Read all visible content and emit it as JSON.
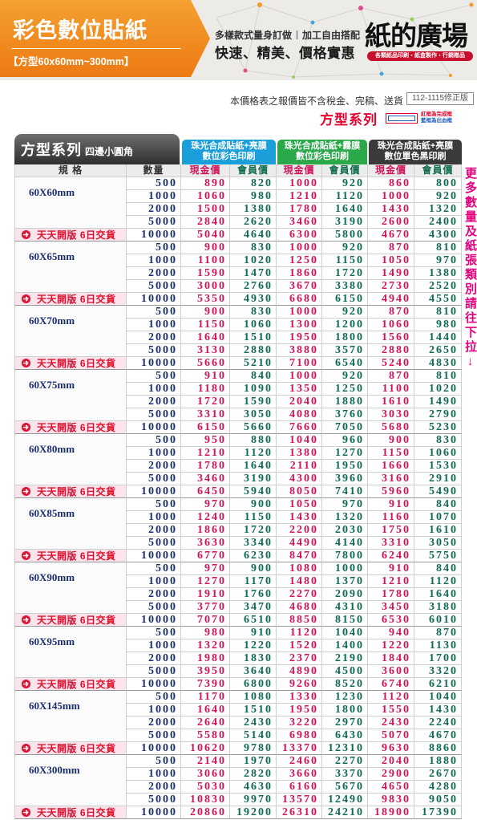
{
  "header": {
    "title": "彩色數位貼紙",
    "subtitle": "【方型60x60mm~300mm】",
    "tagline_left": "多樣款式量身訂做",
    "tagline_right": "加工自由搭配",
    "slogan": "快速、精美、價格實惠",
    "brand": "紙的廣場",
    "brand_sub": "各類紙品印刷・紙盒製作・行銷贈品"
  },
  "notice": {
    "text": "本價格表之報價皆不含稅金、完稿、送貨",
    "version": "112-1115修正版"
  },
  "series": {
    "title": "方型系列",
    "legend_red": "紅框為完成框",
    "legend_blue": "藍框為出血框"
  },
  "table": {
    "label": "方型系列",
    "label_sub": "四邊小圓角",
    "groups": [
      {
        "line1": "珠光合成貼紙+亮膜",
        "line2": "數位彩色印刷",
        "color": "#1a9fdb"
      },
      {
        "line1": "珠光合成貼紙+霧膜",
        "line2": "數位彩色印刷",
        "color": "#2aa84a"
      },
      {
        "line1": "珠光合成貼紙+亮膜",
        "line2": "數位單色黑印刷",
        "color": "#3a3a3a"
      }
    ],
    "col_spec": "規 格",
    "col_qty": "數量",
    "col_cash": "現金價",
    "col_member": "會員價",
    "quick_note": "天天開版 6日交貨",
    "colors": {
      "cash": "#d1145a",
      "member": "#0f6b4f",
      "qty": "#1b2f6e",
      "note": "#e0102f"
    },
    "blocks": [
      {
        "size": "60X60mm",
        "rows": [
          {
            "qty": 500,
            "prices": [
              890,
              820,
              1000,
              920,
              860,
              800
            ]
          },
          {
            "qty": 1000,
            "prices": [
              1060,
              980,
              1210,
              1120,
              1000,
              920
            ]
          },
          {
            "qty": 2000,
            "prices": [
              1500,
              1380,
              1780,
              1640,
              1430,
              1320
            ]
          },
          {
            "qty": 5000,
            "prices": [
              2840,
              2620,
              3460,
              3190,
              2600,
              2400
            ]
          },
          {
            "qty": 10000,
            "prices": [
              5040,
              4640,
              6300,
              5800,
              4670,
              4300
            ]
          }
        ]
      },
      {
        "size": "60X65mm",
        "rows": [
          {
            "qty": 500,
            "prices": [
              900,
              830,
              1000,
              920,
              870,
              810
            ]
          },
          {
            "qty": 1000,
            "prices": [
              1100,
              1020,
              1250,
              1150,
              1050,
              970
            ]
          },
          {
            "qty": 2000,
            "prices": [
              1590,
              1470,
              1860,
              1720,
              1490,
              1380
            ]
          },
          {
            "qty": 5000,
            "prices": [
              3000,
              2760,
              3670,
              3380,
              2730,
              2520
            ]
          },
          {
            "qty": 10000,
            "prices": [
              5350,
              4930,
              6680,
              6150,
              4940,
              4550
            ]
          }
        ]
      },
      {
        "size": "60X70mm",
        "rows": [
          {
            "qty": 500,
            "prices": [
              900,
              830,
              1000,
              920,
              870,
              810
            ]
          },
          {
            "qty": 1000,
            "prices": [
              1150,
              1060,
              1300,
              1200,
              1060,
              980
            ]
          },
          {
            "qty": 2000,
            "prices": [
              1640,
              1510,
              1950,
              1800,
              1560,
              1440
            ]
          },
          {
            "qty": 5000,
            "prices": [
              3130,
              2880,
              3880,
              3570,
              2880,
              2650
            ]
          },
          {
            "qty": 10000,
            "prices": [
              5660,
              5210,
              7100,
              6540,
              5240,
              4830
            ]
          }
        ]
      },
      {
        "size": "60X75mm",
        "rows": [
          {
            "qty": 500,
            "prices": [
              910,
              840,
              1000,
              920,
              870,
              810
            ]
          },
          {
            "qty": 1000,
            "prices": [
              1180,
              1090,
              1350,
              1250,
              1100,
              1020
            ]
          },
          {
            "qty": 2000,
            "prices": [
              1720,
              1590,
              2040,
              1880,
              1610,
              1490
            ]
          },
          {
            "qty": 5000,
            "prices": [
              3310,
              3050,
              4080,
              3760,
              3030,
              2790
            ]
          },
          {
            "qty": 10000,
            "prices": [
              6150,
              5660,
              7660,
              7050,
              5680,
              5230
            ]
          }
        ]
      },
      {
        "size": "60X80mm",
        "rows": [
          {
            "qty": 500,
            "prices": [
              950,
              880,
              1040,
              960,
              900,
              830
            ]
          },
          {
            "qty": 1000,
            "prices": [
              1210,
              1120,
              1380,
              1270,
              1150,
              1060
            ]
          },
          {
            "qty": 2000,
            "prices": [
              1780,
              1640,
              2110,
              1950,
              1660,
              1530
            ]
          },
          {
            "qty": 5000,
            "prices": [
              3460,
              3190,
              4300,
              3960,
              3160,
              2910
            ]
          },
          {
            "qty": 10000,
            "prices": [
              6450,
              5940,
              8050,
              7410,
              5960,
              5490
            ]
          }
        ]
      },
      {
        "size": "60X85mm",
        "rows": [
          {
            "qty": 500,
            "prices": [
              970,
              900,
              1050,
              970,
              910,
              840
            ]
          },
          {
            "qty": 1000,
            "prices": [
              1240,
              1150,
              1430,
              1320,
              1160,
              1070
            ]
          },
          {
            "qty": 2000,
            "prices": [
              1860,
              1720,
              2200,
              2030,
              1750,
              1610
            ]
          },
          {
            "qty": 5000,
            "prices": [
              3630,
              3340,
              4490,
              4140,
              3310,
              3050
            ]
          },
          {
            "qty": 10000,
            "prices": [
              6770,
              6230,
              8470,
              7800,
              6240,
              5750
            ]
          }
        ]
      },
      {
        "size": "60X90mm",
        "rows": [
          {
            "qty": 500,
            "prices": [
              970,
              900,
              1080,
              1000,
              910,
              840
            ]
          },
          {
            "qty": 1000,
            "prices": [
              1270,
              1170,
              1480,
              1370,
              1210,
              1120
            ]
          },
          {
            "qty": 2000,
            "prices": [
              1910,
              1760,
              2270,
              2090,
              1780,
              1640
            ]
          },
          {
            "qty": 5000,
            "prices": [
              3770,
              3470,
              4680,
              4310,
              3450,
              3180
            ]
          },
          {
            "qty": 10000,
            "prices": [
              7070,
              6510,
              8850,
              8150,
              6530,
              6010
            ]
          }
        ]
      },
      {
        "size": "60X95mm",
        "rows": [
          {
            "qty": 500,
            "prices": [
              980,
              910,
              1120,
              1040,
              940,
              870
            ]
          },
          {
            "qty": 1000,
            "prices": [
              1320,
              1220,
              1520,
              1400,
              1220,
              1130
            ]
          },
          {
            "qty": 2000,
            "prices": [
              1980,
              1830,
              2370,
              2190,
              1840,
              1700
            ]
          },
          {
            "qty": 5000,
            "prices": [
              3950,
              3640,
              4890,
              4500,
              3600,
              3320
            ]
          },
          {
            "qty": 10000,
            "prices": [
              7390,
              6800,
              9260,
              8520,
              6740,
              6210
            ]
          }
        ]
      },
      {
        "size": "60X145mm",
        "rows": [
          {
            "qty": 500,
            "prices": [
              1170,
              1080,
              1330,
              1230,
              1120,
              1040
            ]
          },
          {
            "qty": 1000,
            "prices": [
              1640,
              1510,
              1950,
              1800,
              1550,
              1430
            ]
          },
          {
            "qty": 2000,
            "prices": [
              2640,
              2430,
              3220,
              2970,
              2430,
              2240
            ]
          },
          {
            "qty": 5000,
            "prices": [
              5580,
              5140,
              6980,
              6430,
              5070,
              4670
            ]
          },
          {
            "qty": 10000,
            "prices": [
              10620,
              9780,
              13370,
              12310,
              9630,
              8860
            ]
          }
        ]
      },
      {
        "size": "60X300mm",
        "rows": [
          {
            "qty": 500,
            "prices": [
              2140,
              1970,
              2460,
              2270,
              2040,
              1880
            ]
          },
          {
            "qty": 1000,
            "prices": [
              3060,
              2820,
              3660,
              3370,
              2900,
              2670
            ]
          },
          {
            "qty": 2000,
            "prices": [
              5030,
              4630,
              6160,
              5670,
              4650,
              4280
            ]
          },
          {
            "qty": 5000,
            "prices": [
              10830,
              9970,
              13570,
              12490,
              9830,
              9050
            ]
          },
          {
            "qty": 10000,
            "prices": [
              20860,
              19200,
              26310,
              24210,
              18900,
              17390
            ]
          }
        ]
      }
    ]
  },
  "side_note": "更多數量及紙張類別請往下拉↓"
}
